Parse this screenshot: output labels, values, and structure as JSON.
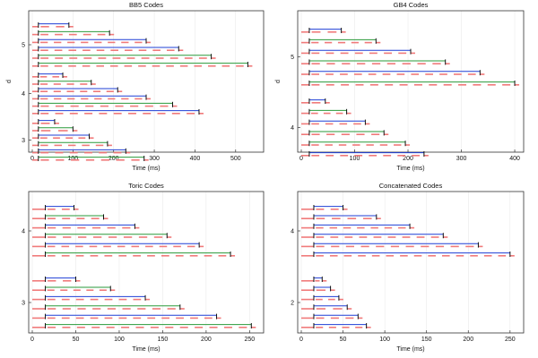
{
  "chart_data": [
    {
      "type": "timeline",
      "title": "BB5 Codes",
      "xlabel": "Time (ms)",
      "ylabel": "d",
      "xlim": [
        0,
        560
      ],
      "xticks": [
        0,
        100,
        200,
        300,
        400,
        500
      ],
      "grid": true,
      "groups": [
        {
          "d": 5,
          "rows": [
            {
              "start": 15,
              "end": 90,
              "color": "#1f3fd6"
            },
            {
              "start": 15,
              "end": 190,
              "color": "#2a9a3a"
            },
            {
              "start": 15,
              "end": 280,
              "color": "#1f3fd6"
            },
            {
              "start": 15,
              "end": 360,
              "color": "#1f3fd6"
            },
            {
              "start": 15,
              "end": 440,
              "color": "#2a9a3a"
            },
            {
              "start": 15,
              "end": 530,
              "color": "#2a9a3a"
            }
          ]
        },
        {
          "d": 4,
          "rows": [
            {
              "start": 15,
              "end": 75,
              "color": "#1f3fd6"
            },
            {
              "start": 15,
              "end": 145,
              "color": "#2a9a3a"
            },
            {
              "start": 15,
              "end": 210,
              "color": "#1f3fd6"
            },
            {
              "start": 15,
              "end": 280,
              "color": "#1f3fd6"
            },
            {
              "start": 15,
              "end": 345,
              "color": "#2a9a3a"
            },
            {
              "start": 15,
              "end": 410,
              "color": "#1f3fd6"
            }
          ]
        },
        {
          "d": 3,
          "rows": [
            {
              "start": 15,
              "end": 55,
              "color": "#1f3fd6"
            },
            {
              "start": 15,
              "end": 100,
              "color": "#2a9a3a"
            },
            {
              "start": 15,
              "end": 140,
              "color": "#1f3fd6"
            },
            {
              "start": 15,
              "end": 185,
              "color": "#2a9a3a"
            },
            {
              "start": 15,
              "end": 230,
              "color": "#1f3fd6"
            },
            {
              "start": 15,
              "end": 275,
              "color": "#2a9a3a"
            }
          ]
        }
      ]
    },
    {
      "type": "timeline",
      "title": "GB4 Codes",
      "xlabel": "Time (ms)",
      "ylabel": "d",
      "xlim": [
        0,
        410
      ],
      "xticks": [
        0,
        100,
        200,
        300,
        400
      ],
      "grid": true,
      "groups": [
        {
          "d": 5,
          "rows": [
            {
              "start": 15,
              "end": 75,
              "color": "#1f3fd6"
            },
            {
              "start": 15,
              "end": 140,
              "color": "#2a9a3a"
            },
            {
              "start": 15,
              "end": 205,
              "color": "#1f3fd6"
            },
            {
              "start": 15,
              "end": 270,
              "color": "#2a9a3a"
            },
            {
              "start": 15,
              "end": 335,
              "color": "#1f3fd6"
            },
            {
              "start": 15,
              "end": 400,
              "color": "#2a9a3a"
            }
          ]
        },
        {
          "d": 4,
          "rows": [
            {
              "start": 15,
              "end": 45,
              "color": "#1f3fd6"
            },
            {
              "start": 15,
              "end": 85,
              "color": "#2a9a3a"
            },
            {
              "start": 15,
              "end": 120,
              "color": "#1f3fd6"
            },
            {
              "start": 15,
              "end": 155,
              "color": "#2a9a3a"
            },
            {
              "start": 15,
              "end": 195,
              "color": "#2a9a3a"
            },
            {
              "start": 15,
              "end": 230,
              "color": "#1f3fd6"
            }
          ]
        }
      ]
    },
    {
      "type": "timeline",
      "title": "Toric Codes",
      "xlabel": "Time (ms)",
      "ylabel": "d",
      "xlim": [
        0,
        262
      ],
      "xticks": [
        0,
        50,
        100,
        150,
        200,
        250
      ],
      "grid": true,
      "groups": [
        {
          "d": 4,
          "rows": [
            {
              "start": 15,
              "end": 48,
              "color": "#1f3fd6"
            },
            {
              "start": 15,
              "end": 82,
              "color": "#2a9a3a"
            },
            {
              "start": 15,
              "end": 118,
              "color": "#1f3fd6"
            },
            {
              "start": 15,
              "end": 155,
              "color": "#2a9a3a"
            },
            {
              "start": 15,
              "end": 192,
              "color": "#1f3fd6"
            },
            {
              "start": 15,
              "end": 228,
              "color": "#2a9a3a"
            }
          ]
        },
        {
          "d": 3,
          "rows": [
            {
              "start": 15,
              "end": 50,
              "color": "#1f3fd6"
            },
            {
              "start": 15,
              "end": 90,
              "color": "#2a9a3a"
            },
            {
              "start": 15,
              "end": 130,
              "color": "#1f3fd6"
            },
            {
              "start": 15,
              "end": 170,
              "color": "#2a9a3a"
            },
            {
              "start": 15,
              "end": 212,
              "color": "#1f3fd6"
            },
            {
              "start": 15,
              "end": 252,
              "color": "#2a9a3a"
            }
          ]
        }
      ]
    },
    {
      "type": "timeline",
      "title": "Concatenated Codes",
      "xlabel": "Time (ms)",
      "ylabel": "d",
      "xlim": [
        0,
        262
      ],
      "xticks": [
        0,
        50,
        100,
        150,
        200,
        250
      ],
      "grid": true,
      "groups": [
        {
          "d": 4,
          "rows": [
            {
              "start": 15,
              "end": 50,
              "color": "#1f3fd6"
            },
            {
              "start": 15,
              "end": 90,
              "color": "#1f3fd6"
            },
            {
              "start": 15,
              "end": 130,
              "color": "#1f3fd6"
            },
            {
              "start": 15,
              "end": 170,
              "color": "#1f3fd6"
            },
            {
              "start": 15,
              "end": 212,
              "color": "#1f3fd6"
            },
            {
              "start": 15,
              "end": 250,
              "color": "#1f3fd6"
            }
          ]
        },
        {
          "d": 2,
          "rows": [
            {
              "start": 15,
              "end": 25,
              "color": "#1f3fd6"
            },
            {
              "start": 15,
              "end": 35,
              "color": "#1f3fd6"
            },
            {
              "start": 15,
              "end": 45,
              "color": "#1f3fd6"
            },
            {
              "start": 15,
              "end": 55,
              "color": "#1f3fd6"
            },
            {
              "start": 15,
              "end": 68,
              "color": "#1f3fd6"
            },
            {
              "start": 15,
              "end": 78,
              "color": "#1f3fd6"
            }
          ]
        }
      ]
    }
  ],
  "colors": {
    "frame": "#333333",
    "grid": "#e6e6e6",
    "red_segment": "#f07a7a",
    "bracket": "#111111"
  }
}
